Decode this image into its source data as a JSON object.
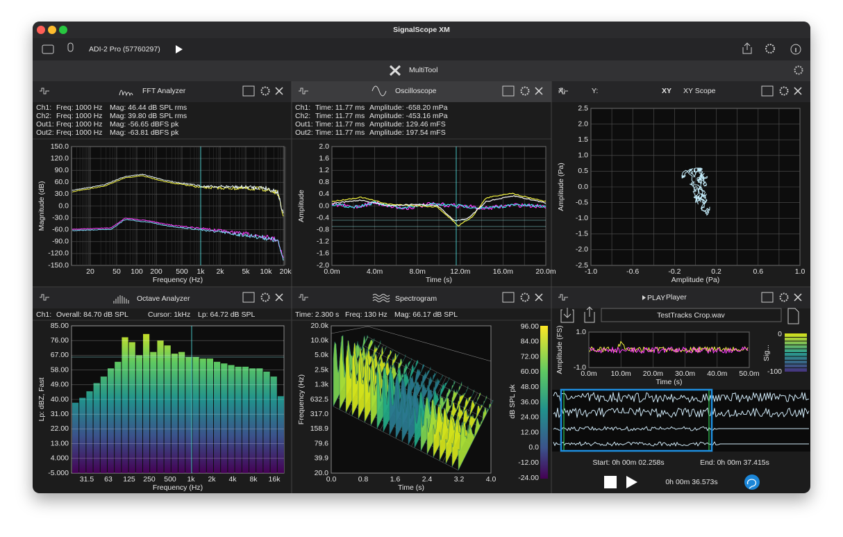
{
  "window": {
    "title": "SignalScope XM"
  },
  "toolbar": {
    "device": "ADI-2 Pro (57760297)"
  },
  "multitool": {
    "title": "MultiTool"
  },
  "fft": {
    "title": "FFT Analyzer",
    "readouts": [
      [
        "Ch1:",
        "Freq: 1000 Hz",
        "Mag: 46.44 dB SPL rms"
      ],
      [
        "Ch2:",
        "Freq: 1000 Hz",
        "Mag: 39.80 dB SPL rms"
      ],
      [
        "Out1:",
        "Freq: 1000 Hz",
        "Mag: -56.65 dBFS pk"
      ],
      [
        "Out2:",
        "Freq: 1000 Hz",
        "Mag: -63.81 dBFS pk"
      ]
    ],
    "ylabel": "Magnitude (dB)",
    "xlabel": "Frequency (Hz)",
    "yticks": [
      "150.0",
      "120.0",
      "90.0",
      "60.0",
      "30.0",
      "0.0",
      "-30.0",
      "-60.0",
      "-90.0",
      "-120.0",
      "-150.0"
    ],
    "xticks": [
      "20",
      "50",
      "100",
      "200",
      "500",
      "1k",
      "2k",
      "5k",
      "10k",
      "20k"
    ]
  },
  "oscilloscope": {
    "title": "Oscilloscope",
    "readouts": [
      [
        "Ch1:",
        "Time: 11.77 ms",
        "Amplitude: -658.20 mPa"
      ],
      [
        "Ch2:",
        "Time: 11.77 ms",
        "Amplitude: -453.16 mPa"
      ],
      [
        "Out1:",
        "Time: 11.77 ms",
        "Amplitude: 129.46 mFS"
      ],
      [
        "Out2:",
        "Time: 11.77 ms",
        "Amplitude: 197.54 mFS"
      ]
    ],
    "ylabel": "Amplitude",
    "xlabel": "Time (s)",
    "yticks": [
      "2.0",
      "1.6",
      "1.2",
      "0.8",
      "0.4",
      "0.0",
      "-0.4",
      "-0.8",
      "-1.2",
      "-1.6",
      "-2.0"
    ],
    "xticks": [
      "0.0m",
      "4.0m",
      "8.0m",
      "12.0m",
      "16.0m",
      "20.0m"
    ]
  },
  "xy": {
    "x_prefix": "X:",
    "y_prefix": "Y:",
    "icon": "XY",
    "title": "XY Scope",
    "ylabel": "Amplitude (Pa)",
    "xlabel": "Amplitude (Pa)",
    "yticks": [
      "2.5",
      "2.0",
      "1.5",
      "1.0",
      "0.5",
      "0.0",
      "-0.5",
      "-1.0",
      "-1.5",
      "-2.0",
      "-2.5"
    ],
    "xticks": [
      "-1.0",
      "-0.6",
      "-0.2",
      "0.2",
      "0.6",
      "1.0"
    ]
  },
  "octave": {
    "title": "Octave Analyzer",
    "readout": [
      "Ch1:",
      "Overall: 84.70 dB SPL",
      "Cursor: 1kHz",
      "Lp: 64.72 dB SPL"
    ],
    "ylabel": "Lp: dBZ, Fast",
    "xlabel": "Frequency (Hz)",
    "ylim": [
      -5,
      85
    ],
    "yticks": [
      "85.00",
      "76.00",
      "67.00",
      "58.00",
      "49.00",
      "40.00",
      "31.00",
      "22.00",
      "13.00",
      "4.000",
      "-5.000"
    ],
    "xticks": [
      "31.5",
      "63",
      "125",
      "250",
      "500",
      "1k",
      "2k",
      "4k",
      "8k",
      "16k"
    ],
    "bars": [
      38,
      41,
      45,
      50,
      54,
      59,
      63,
      78,
      75,
      67,
      80,
      69,
      76,
      73,
      68,
      69,
      66,
      66,
      65,
      65,
      63,
      62,
      61,
      60,
      60,
      59,
      59,
      57,
      54,
      42
    ]
  },
  "spectrogram": {
    "title": "Spectrogram",
    "readout": [
      "Time: 2.300 s",
      "Freq: 130 Hz",
      "Mag: 66.17 dB SPL"
    ],
    "ylabel": "Frequency (Hz)",
    "xlabel": "Time (s)",
    "yticks": [
      "20.0k",
      "10.0k",
      "5.0k",
      "2.5k",
      "1.3k",
      "632.5",
      "317.0",
      "158.9",
      "79.6",
      "39.9",
      "20.0"
    ],
    "xticks": [
      "0.0",
      "0.8",
      "1.6",
      "2.4",
      "3.2",
      "4.0"
    ],
    "colorbar_ticks": [
      "96.00",
      "84.00",
      "72.00",
      "60.00",
      "48.00",
      "36.00",
      "24.00",
      "12.00",
      "0.0",
      "-12.00",
      "-24.00"
    ],
    "colorbar_label": "dB SPL pk"
  },
  "player": {
    "tag": "PLAY",
    "title": "Player",
    "file": "TestTracks Crop.wav",
    "ylabel": "Amplitude (FS)",
    "xlabel": "Time (s)",
    "yticks": [
      "1.0",
      "-1.0"
    ],
    "xticks": [
      "0.0m",
      "10.0m",
      "20.0m",
      "30.0m",
      "40.0m",
      "50.0m"
    ],
    "meter_label": "Sig...",
    "meter_ticks": [
      "0",
      "-100"
    ],
    "start": "Start: 0h 00m 02.258s",
    "end": "End: 0h 00m 37.415s",
    "time": "0h 00m 36.573s"
  }
}
